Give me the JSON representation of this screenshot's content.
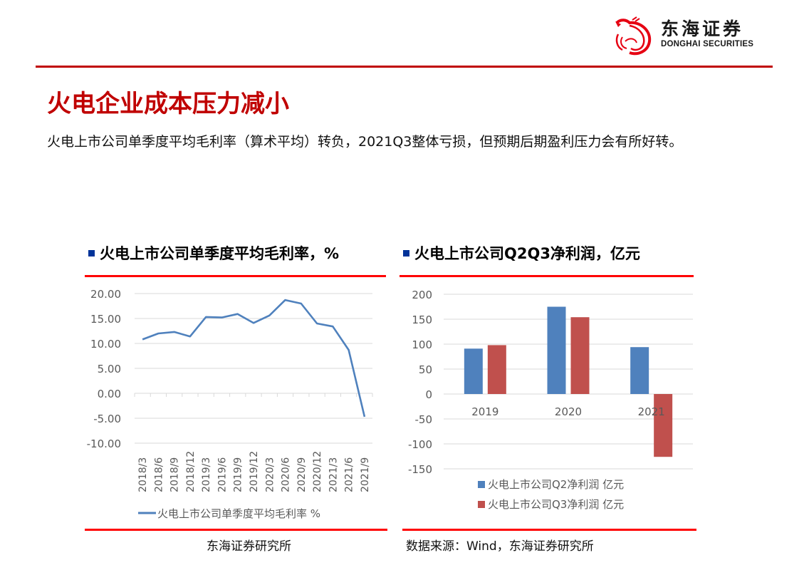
{
  "header": {
    "logo_cn": "东海证券",
    "logo_en": "DONGHAI SECURITIES",
    "logo_icon": "dragon-logo-icon",
    "accent_color": "#c00000"
  },
  "page": {
    "title": "火电企业成本压力减小",
    "subtitle": "火电上市公司单季度平均毛利率（算术平均）转负，2021Q3整体亏损，但预期后期盈利压力会有所好转。"
  },
  "left_panel": {
    "title": "火电上市公司单季度平均毛利率，%",
    "source": "东海证券研究所"
  },
  "right_panel": {
    "title": "火电上市公司Q2Q3净利润，亿元",
    "source": "数据来源：Wind，东海证券研究所"
  },
  "chart_data": [
    {
      "type": "line",
      "title": "火电上市公司单季度平均毛利率，%",
      "xlabel": "",
      "ylabel": "",
      "categories": [
        "2018/3",
        "2018/6",
        "2018/9",
        "2018/12",
        "2019/3",
        "2019/6",
        "2019/9",
        "2019/12",
        "2020/3",
        "2020/6",
        "2020/9",
        "2020/12",
        "2021/3",
        "2021/6",
        "2021/9"
      ],
      "series": [
        {
          "name": "火电上市公司单季度平均毛利率 %",
          "color": "#4f81bd",
          "values": [
            10.8,
            12.0,
            12.3,
            11.4,
            15.3,
            15.2,
            15.9,
            14.1,
            15.6,
            18.7,
            18.0,
            14.0,
            13.4,
            8.7,
            -4.7
          ]
        }
      ],
      "yticks": [
        "20.00",
        "15.00",
        "10.00",
        "5.00",
        "0.00",
        "-5.00",
        "-10.00"
      ],
      "ylim": [
        -10,
        20
      ],
      "grid": true,
      "legend_position": "bottom"
    },
    {
      "type": "bar",
      "title": "火电上市公司Q2Q3净利润，亿元",
      "xlabel": "",
      "ylabel": "",
      "categories": [
        "2019",
        "2020",
        "2021"
      ],
      "series": [
        {
          "name": "火电上市公司Q2净利润 亿元",
          "color": "#4f81bd",
          "values": [
            91,
            175,
            94
          ]
        },
        {
          "name": "火电上市公司Q3净利润 亿元",
          "color": "#c0504d",
          "values": [
            98,
            154,
            -126
          ]
        }
      ],
      "yticks": [
        "200",
        "150",
        "100",
        "50",
        "0",
        "-50",
        "-100",
        "-150"
      ],
      "ylim": [
        -150,
        200
      ],
      "grid": true,
      "legend_position": "bottom"
    }
  ]
}
